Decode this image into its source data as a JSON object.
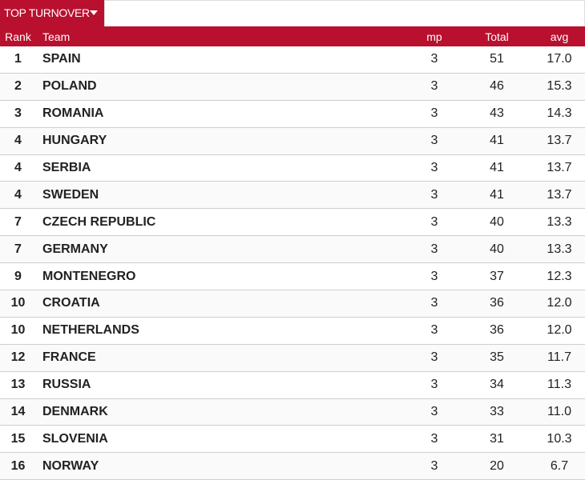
{
  "tab": {
    "label": "TOP TURNOVER"
  },
  "table": {
    "columns": [
      "Rank",
      "Team",
      "mp",
      "Total",
      "avg"
    ],
    "rows": [
      [
        "1",
        "SPAIN",
        "3",
        "51",
        "17.0"
      ],
      [
        "2",
        "POLAND",
        "3",
        "46",
        "15.3"
      ],
      [
        "3",
        "ROMANIA",
        "3",
        "43",
        "14.3"
      ],
      [
        "4",
        "HUNGARY",
        "3",
        "41",
        "13.7"
      ],
      [
        "4",
        "SERBIA",
        "3",
        "41",
        "13.7"
      ],
      [
        "4",
        "SWEDEN",
        "3",
        "41",
        "13.7"
      ],
      [
        "7",
        "CZECH REPUBLIC",
        "3",
        "40",
        "13.3"
      ],
      [
        "7",
        "GERMANY",
        "3",
        "40",
        "13.3"
      ],
      [
        "9",
        "MONTENEGRO",
        "3",
        "37",
        "12.3"
      ],
      [
        "10",
        "CROATIA",
        "3",
        "36",
        "12.0"
      ],
      [
        "10",
        "NETHERLANDS",
        "3",
        "36",
        "12.0"
      ],
      [
        "12",
        "FRANCE",
        "3",
        "35",
        "11.7"
      ],
      [
        "13",
        "RUSSIA",
        "3",
        "34",
        "11.3"
      ],
      [
        "14",
        "DENMARK",
        "3",
        "33",
        "11.0"
      ],
      [
        "15",
        "SLOVENIA",
        "3",
        "31",
        "10.3"
      ],
      [
        "16",
        "NORWAY",
        "3",
        "20",
        "6.7"
      ]
    ]
  }
}
